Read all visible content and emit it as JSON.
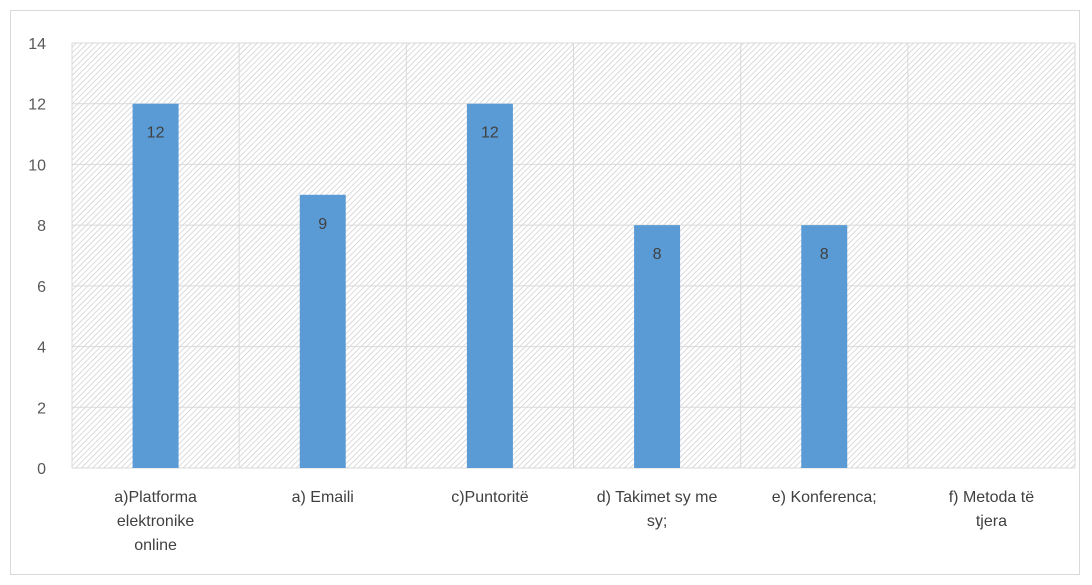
{
  "chart_data": {
    "type": "bar",
    "title": "",
    "xlabel": "",
    "ylabel": "",
    "categories": [
      [
        "a)Platforma",
        "elektronike",
        "online"
      ],
      [
        "a)  Emaili"
      ],
      [
        "c)Puntoritë"
      ],
      [
        "d) Takimet sy me",
        "sy;"
      ],
      [
        "e) Konferenca;"
      ],
      [
        "f) Metoda të",
        "tjera"
      ]
    ],
    "values": [
      12,
      9,
      12,
      8,
      8,
      null
    ],
    "data_labels": [
      "12",
      "9",
      "12",
      "8",
      "8",
      ""
    ],
    "ylim": [
      0,
      14
    ],
    "yticks": [
      0,
      2,
      4,
      6,
      8,
      10,
      12,
      14
    ],
    "grid": true,
    "legend": "none",
    "colors": {
      "bar": "#5b9bd5",
      "grid": "#d9d9d9",
      "hatch": "#c8c8c8",
      "axis_text": "#595959"
    }
  }
}
